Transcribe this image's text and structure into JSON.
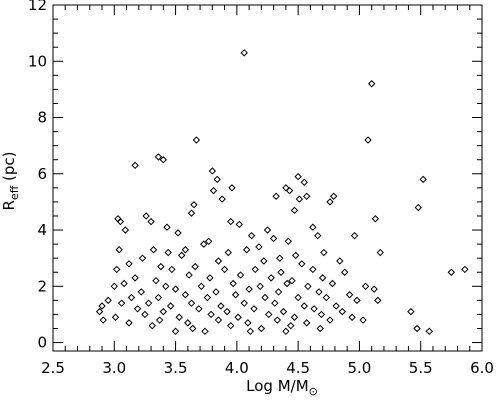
{
  "chart_data": {
    "type": "scatter",
    "marker": "diamond",
    "marker_color": "#000000",
    "grid": false,
    "xlabel": {
      "main": "Log M/M",
      "subscript_symbol": "⊙"
    },
    "ylabel": {
      "main": "R",
      "subscript": "eff",
      "suffix": " (pc)"
    },
    "xlim": [
      2.5,
      6.0
    ],
    "ylim": [
      -0.3,
      12
    ],
    "x_ticks": [
      "2.5",
      "3.0",
      "3.5",
      "4.0",
      "4.5",
      "5.0",
      "5.5",
      "6.0"
    ],
    "y_ticks": [
      "0",
      "2",
      "4",
      "6",
      "8",
      "10",
      "12"
    ],
    "points": [
      [
        4.06,
        10.3
      ],
      [
        5.1,
        9.2
      ],
      [
        5.07,
        7.2
      ],
      [
        3.67,
        7.2
      ],
      [
        3.36,
        6.6
      ],
      [
        3.4,
        6.5
      ],
      [
        3.17,
        6.3
      ],
      [
        3.8,
        6.1
      ],
      [
        4.5,
        5.9
      ],
      [
        4.55,
        5.7
      ],
      [
        3.84,
        5.8
      ],
      [
        5.52,
        5.8
      ],
      [
        4.4,
        5.5
      ],
      [
        3.96,
        5.5
      ],
      [
        4.43,
        5.4
      ],
      [
        3.81,
        5.4
      ],
      [
        4.57,
        5.2
      ],
      [
        4.32,
        5.2
      ],
      [
        4.79,
        5.2
      ],
      [
        4.76,
        5.0
      ],
      [
        3.88,
        5.1
      ],
      [
        4.51,
        5.1
      ],
      [
        3.65,
        4.9
      ],
      [
        4.47,
        4.7
      ],
      [
        5.48,
        4.8
      ],
      [
        3.63,
        4.6
      ],
      [
        3.26,
        4.5
      ],
      [
        3.3,
        4.3
      ],
      [
        3.03,
        4.4
      ],
      [
        3.05,
        4.3
      ],
      [
        3.95,
        4.3
      ],
      [
        4.02,
        4.2
      ],
      [
        4.25,
        4.0
      ],
      [
        4.62,
        4.1
      ],
      [
        5.13,
        4.4
      ],
      [
        4.96,
        3.8
      ],
      [
        3.77,
        3.6
      ],
      [
        3.43,
        4.1
      ],
      [
        3.09,
        4.0
      ],
      [
        3.52,
        3.9
      ],
      [
        4.12,
        3.8
      ],
      [
        4.3,
        3.7
      ],
      [
        4.42,
        3.6
      ],
      [
        4.66,
        3.8
      ],
      [
        3.73,
        3.5
      ],
      [
        4.18,
        3.4
      ],
      [
        3.04,
        3.3
      ],
      [
        3.32,
        3.3
      ],
      [
        3.44,
        3.2
      ],
      [
        3.58,
        3.3
      ],
      [
        4.08,
        3.3
      ],
      [
        5.17,
        3.2
      ],
      [
        3.23,
        3.0
      ],
      [
        3.93,
        3.2
      ],
      [
        4.48,
        3.1
      ],
      [
        4.71,
        3.2
      ],
      [
        3.55,
        3.1
      ],
      [
        4.35,
        3.0
      ],
      [
        3.12,
        2.8
      ],
      [
        3.38,
        2.7
      ],
      [
        3.66,
        2.7
      ],
      [
        3.85,
        2.9
      ],
      [
        4.22,
        2.9
      ],
      [
        4.53,
        2.8
      ],
      [
        4.84,
        2.9
      ],
      [
        3.02,
        2.6
      ],
      [
        3.47,
        2.6
      ],
      [
        3.9,
        2.6
      ],
      [
        4.15,
        2.6
      ],
      [
        4.36,
        2.5
      ],
      [
        4.62,
        2.6
      ],
      [
        4.88,
        2.5
      ],
      [
        5.75,
        2.5
      ],
      [
        5.86,
        2.6
      ],
      [
        3.17,
        2.3
      ],
      [
        3.34,
        2.2
      ],
      [
        3.61,
        2.4
      ],
      [
        3.78,
        2.3
      ],
      [
        4.03,
        2.4
      ],
      [
        4.28,
        2.3
      ],
      [
        4.45,
        2.2
      ],
      [
        4.7,
        2.3
      ],
      [
        3.08,
        2.1
      ],
      [
        3.42,
        2.0
      ],
      [
        3.71,
        2.0
      ],
      [
        3.97,
        2.1
      ],
      [
        4.19,
        2.0
      ],
      [
        4.41,
        2.1
      ],
      [
        4.58,
        2.0
      ],
      [
        4.78,
        2.1
      ],
      [
        5.05,
        2.0
      ],
      [
        5.12,
        1.9
      ],
      [
        3.0,
        2.0
      ],
      [
        3.22,
        1.8
      ],
      [
        3.5,
        1.9
      ],
      [
        3.83,
        1.8
      ],
      [
        4.1,
        1.9
      ],
      [
        4.34,
        1.8
      ],
      [
        4.67,
        1.8
      ],
      [
        4.92,
        1.7
      ],
      [
        2.95,
        1.5
      ],
      [
        3.14,
        1.6
      ],
      [
        3.36,
        1.6
      ],
      [
        3.58,
        1.7
      ],
      [
        3.76,
        1.6
      ],
      [
        3.99,
        1.7
      ],
      [
        4.23,
        1.6
      ],
      [
        4.5,
        1.6
      ],
      [
        4.73,
        1.6
      ],
      [
        4.98,
        1.5
      ],
      [
        5.15,
        1.5
      ],
      [
        2.9,
        1.3
      ],
      [
        3.06,
        1.4
      ],
      [
        3.28,
        1.4
      ],
      [
        3.46,
        1.3
      ],
      [
        3.63,
        1.4
      ],
      [
        3.87,
        1.3
      ],
      [
        4.06,
        1.4
      ],
      [
        4.31,
        1.4
      ],
      [
        4.55,
        1.3
      ],
      [
        4.81,
        1.3
      ],
      [
        2.88,
        1.1
      ],
      [
        3.19,
        1.2
      ],
      [
        3.4,
        1.1
      ],
      [
        3.69,
        1.2
      ],
      [
        3.92,
        1.1
      ],
      [
        4.14,
        1.2
      ],
      [
        4.38,
        1.1
      ],
      [
        4.63,
        1.2
      ],
      [
        4.86,
        1.1
      ],
      [
        5.42,
        1.1
      ],
      [
        3.01,
        0.9
      ],
      [
        3.25,
        1.0
      ],
      [
        3.53,
        0.9
      ],
      [
        3.79,
        1.0
      ],
      [
        4.01,
        0.9
      ],
      [
        4.26,
        1.0
      ],
      [
        4.47,
        0.9
      ],
      [
        4.69,
        1.0
      ],
      [
        4.94,
        0.9
      ],
      [
        2.91,
        0.8
      ],
      [
        3.12,
        0.7
      ],
      [
        3.37,
        0.8
      ],
      [
        3.6,
        0.7
      ],
      [
        3.85,
        0.8
      ],
      [
        4.09,
        0.7
      ],
      [
        4.33,
        0.8
      ],
      [
        4.57,
        0.7
      ],
      [
        4.76,
        0.8
      ],
      [
        5.03,
        0.8
      ],
      [
        3.31,
        0.6
      ],
      [
        3.64,
        0.5
      ],
      [
        3.95,
        0.6
      ],
      [
        4.2,
        0.5
      ],
      [
        4.44,
        0.6
      ],
      [
        4.68,
        0.5
      ],
      [
        3.5,
        0.4
      ],
      [
        3.74,
        0.4
      ],
      [
        4.11,
        0.4
      ],
      [
        4.4,
        0.4
      ],
      [
        5.47,
        0.5
      ],
      [
        5.57,
        0.4
      ]
    ]
  }
}
